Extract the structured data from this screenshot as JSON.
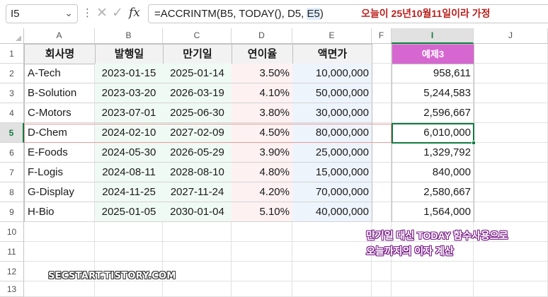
{
  "formula_bar": {
    "name_box": "I5",
    "fx_label": "fx",
    "formula_prefix": "=ACCRINTM(B5, TODAY(), D5, ",
    "formula_highlight": "E5",
    "formula_suffix": ")"
  },
  "annotations": {
    "top_note": "오늘이 25년10월11일이라 가정",
    "bottom_note_line1": "만기일 대신 TODAY 함수사용으로",
    "bottom_note_line2": "오늘까지의 이자 계산",
    "watermark": "SECSTART.TISTORY.COM"
  },
  "columns": [
    "A",
    "B",
    "C",
    "D",
    "E",
    "F",
    "I",
    "J"
  ],
  "selected_column": "I",
  "rows": [
    "1",
    "2",
    "3",
    "4",
    "5",
    "6",
    "7",
    "8",
    "9",
    "10",
    "11",
    "12",
    "13"
  ],
  "selected_row": "5",
  "table": {
    "headers": [
      "회사명",
      "발행일",
      "만기일",
      "연이율",
      "액면가"
    ],
    "records": [
      [
        "A-Tech",
        "2023-01-15",
        "2025-01-14",
        "3.50%",
        "10,000,000"
      ],
      [
        "B-Solution",
        "2023-03-20",
        "2026-03-19",
        "4.10%",
        "50,000,000"
      ],
      [
        "C-Motors",
        "2023-07-01",
        "2025-06-30",
        "3.80%",
        "30,000,000"
      ],
      [
        "D-Chem",
        "2024-02-10",
        "2027-02-09",
        "4.50%",
        "80,000,000"
      ],
      [
        "E-Foods",
        "2024-05-30",
        "2026-05-29",
        "3.90%",
        "25,000,000"
      ],
      [
        "F-Logis",
        "2024-08-11",
        "2028-08-10",
        "4.80%",
        "15,000,000"
      ],
      [
        "G-Display",
        "2024-11-25",
        "2027-11-24",
        "4.20%",
        "70,000,000"
      ],
      [
        "H-Bio",
        "2025-01-05",
        "2030-01-04",
        "5.10%",
        "40,000,000"
      ]
    ]
  },
  "example": {
    "header": "예제3",
    "values": [
      "958,611",
      "5,244,583",
      "2,596,667",
      "6,010,000",
      "1,329,792",
      "840,000",
      "2,580,667",
      "1,564,000"
    ]
  },
  "colors": {
    "accent_green": "#107c41",
    "example_header": "#d667d0",
    "note_red": "#b8221f",
    "note_purple_outline": "#7b1f8a"
  }
}
